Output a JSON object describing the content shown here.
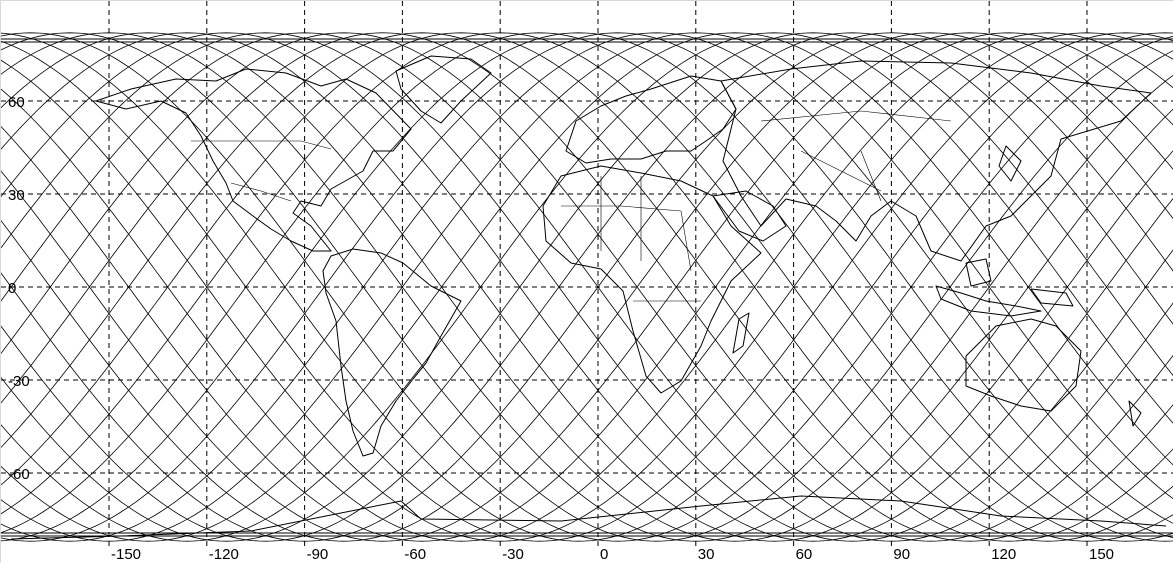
{
  "map": {
    "projection": "equirectangular",
    "grid": true,
    "longitude_labels": [
      "-150",
      "-120",
      "-90",
      "-60",
      "-30",
      "0",
      "30",
      "60",
      "90",
      "120",
      "150"
    ],
    "longitude_values": [
      -150,
      -120,
      -90,
      -60,
      -30,
      0,
      30,
      60,
      90,
      120,
      150
    ],
    "latitude_labels": [
      "60",
      "30",
      "0",
      "-30",
      "-60"
    ],
    "latitude_values": [
      60,
      30,
      0,
      -30,
      -60
    ],
    "ground_tracks": {
      "count": 30,
      "inclination_deg": 82,
      "color": "#000000"
    },
    "colors": {
      "background": "#ffffff",
      "lines": "#000000"
    }
  }
}
